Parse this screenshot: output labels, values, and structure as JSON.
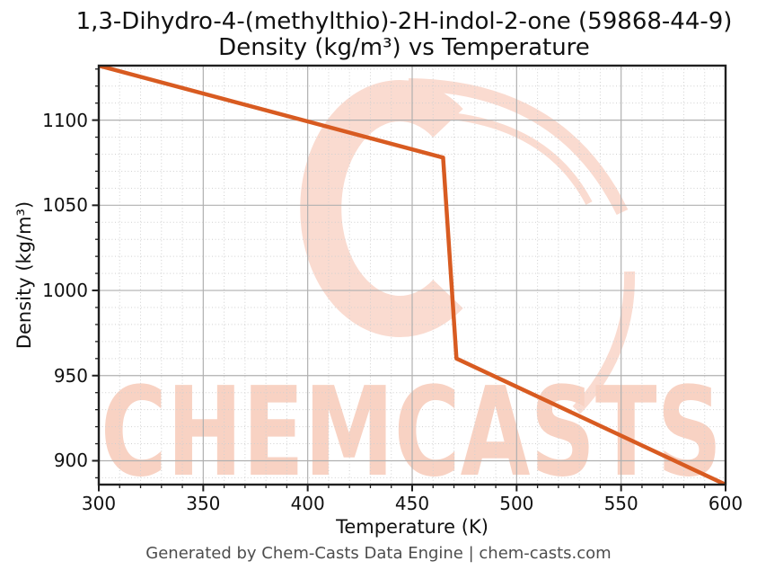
{
  "title": {
    "line1": "1,3-Dihydro-4-(methylthio)-2H-indol-2-one (59868-44-9)",
    "line2": "Density (kg/m³) vs Temperature"
  },
  "footer": {
    "text": "Generated by Chem-Casts Data Engine | chem-casts.com"
  },
  "watermark": {
    "text": "CHEMCASTS",
    "logo": "chemcasts-c-swoosh-logo"
  },
  "colors": {
    "accent": "#d85b21",
    "watermark_text": "#f8d2c3",
    "watermark_logo": "#fadbd0",
    "grid_major": "#b0b0b0",
    "grid_minor": "#d0d0d0",
    "spine": "#1f1f1f",
    "footer_text": "#4d4d4d"
  },
  "chart_data": {
    "type": "line",
    "title": "1,3-Dihydro-4-(methylthio)-2H-indol-2-one (59868-44-9)\nDensity (kg/m³) vs Temperature",
    "xlabel": "Temperature (K)",
    "ylabel": "Density (kg/m³)",
    "xlim": [
      300,
      600
    ],
    "ylim": [
      886,
      1132
    ],
    "x_ticks": [
      300,
      350,
      400,
      450,
      500,
      550,
      600
    ],
    "y_ticks": [
      900,
      950,
      1000,
      1050,
      1100
    ],
    "minor_tick_step": 10,
    "grid": "major-solid-minor-dotted",
    "legend": "none",
    "series": [
      {
        "name": "Density",
        "color": "#d85b21",
        "points": [
          [
            300,
            1132
          ],
          [
            464.8,
            1078
          ],
          [
            471.2,
            960
          ],
          [
            600,
            886
          ]
        ],
        "note": "solid branch 300-464.8 K, phase-transition drop 1078->960 kg/m3 near 465-471 K, liquid branch 471.2-600 K"
      }
    ]
  }
}
